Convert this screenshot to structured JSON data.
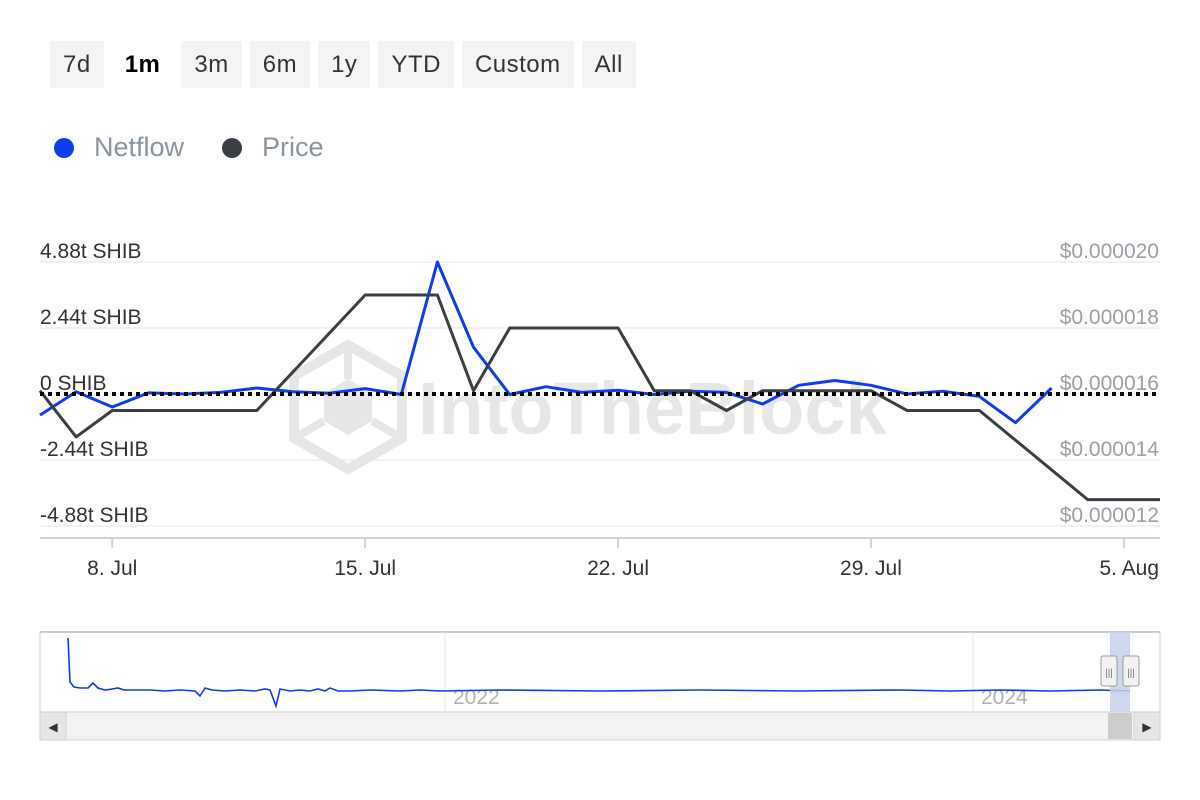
{
  "range_buttons": [
    {
      "label": "7d",
      "active": false
    },
    {
      "label": "1m",
      "active": true
    },
    {
      "label": "3m",
      "active": false
    },
    {
      "label": "6m",
      "active": false
    },
    {
      "label": "1y",
      "active": false
    },
    {
      "label": "YTD",
      "active": false
    },
    {
      "label": "Custom",
      "active": false
    },
    {
      "label": "All",
      "active": false
    }
  ],
  "legend": [
    {
      "label": "Netflow",
      "color": "#0d3ded"
    },
    {
      "label": "Price",
      "color": "#3a3f45"
    }
  ],
  "watermark": "IntoTheBlock",
  "chart_data": {
    "type": "line",
    "title": "",
    "xlabel": "",
    "x_start": "2024-07-06",
    "x_end": "2024-08-06",
    "x_ticks": [
      {
        "date": "2024-07-08",
        "label": "8. Jul"
      },
      {
        "date": "2024-07-15",
        "label": "15. Jul"
      },
      {
        "date": "2024-07-22",
        "label": "22. Jul"
      },
      {
        "date": "2024-07-29",
        "label": "29. Jul"
      },
      {
        "date": "2024-08-05",
        "label": "5. Aug"
      }
    ],
    "left_axis": {
      "unit": "t SHIB",
      "range": [
        -4.88,
        4.88
      ],
      "ticks": [
        {
          "value": 4.88,
          "label": "4.88t SHIB"
        },
        {
          "value": 2.44,
          "label": "2.44t SHIB"
        },
        {
          "value": 0,
          "label": "0 SHIB"
        },
        {
          "value": -2.44,
          "label": "-2.44t SHIB"
        },
        {
          "value": -4.88,
          "label": "-4.88t SHIB"
        }
      ]
    },
    "right_axis": {
      "unit": "$",
      "range": [
        1.2e-05,
        2e-05
      ],
      "ticks": [
        {
          "value": 2e-05,
          "label": "$0.000020"
        },
        {
          "value": 1.8e-05,
          "label": "$0.000018"
        },
        {
          "value": 1.6e-05,
          "label": "$0.000016"
        },
        {
          "value": 1.4e-05,
          "label": "$0.000014"
        },
        {
          "value": 1.2e-05,
          "label": "$0.000012"
        }
      ]
    },
    "zero_line": "dotted",
    "series": [
      {
        "name": "Netflow",
        "axis": "left",
        "color": "#0d3ded",
        "points": [
          [
            "2024-07-06",
            -0.78
          ],
          [
            "2024-07-07",
            0.08
          ],
          [
            "2024-07-08",
            -0.48
          ],
          [
            "2024-07-09",
            0.04
          ],
          [
            "2024-07-10",
            0.0
          ],
          [
            "2024-07-11",
            0.06
          ],
          [
            "2024-07-12",
            0.22
          ],
          [
            "2024-07-13",
            0.08
          ],
          [
            "2024-07-14",
            0.03
          ],
          [
            "2024-07-15",
            0.2
          ],
          [
            "2024-07-16",
            -0.02
          ],
          [
            "2024-07-17",
            4.88
          ],
          [
            "2024-07-18",
            1.73
          ],
          [
            "2024-07-19",
            -0.02
          ],
          [
            "2024-07-20",
            0.27
          ],
          [
            "2024-07-21",
            0.06
          ],
          [
            "2024-07-22",
            0.14
          ],
          [
            "2024-07-23",
            -0.02
          ],
          [
            "2024-07-24",
            0.1
          ],
          [
            "2024-07-25",
            0.06
          ],
          [
            "2024-07-26",
            -0.37
          ],
          [
            "2024-07-27",
            0.32
          ],
          [
            "2024-07-28",
            0.5
          ],
          [
            "2024-07-29",
            0.32
          ],
          [
            "2024-07-30",
            0.0
          ],
          [
            "2024-07-31",
            0.1
          ],
          [
            "2024-08-01",
            -0.09
          ],
          [
            "2024-08-02",
            -1.06
          ],
          [
            "2024-08-03",
            0.22
          ]
        ]
      },
      {
        "name": "Price",
        "axis": "right",
        "color": "#3a3f45",
        "points": [
          [
            "2024-07-06",
            1.61e-05
          ],
          [
            "2024-07-07",
            1.47e-05
          ],
          [
            "2024-07-08",
            1.55e-05
          ],
          [
            "2024-07-10",
            1.55e-05
          ],
          [
            "2024-07-12",
            1.55e-05
          ],
          [
            "2024-07-15",
            1.9e-05
          ],
          [
            "2024-07-17",
            1.9e-05
          ],
          [
            "2024-07-18",
            1.61e-05
          ],
          [
            "2024-07-19",
            1.8e-05
          ],
          [
            "2024-07-22",
            1.8e-05
          ],
          [
            "2024-07-23",
            1.61e-05
          ],
          [
            "2024-07-24",
            1.61e-05
          ],
          [
            "2024-07-25",
            1.55e-05
          ],
          [
            "2024-07-26",
            1.61e-05
          ],
          [
            "2024-07-29",
            1.61e-05
          ],
          [
            "2024-07-30",
            1.55e-05
          ],
          [
            "2024-08-01",
            1.55e-05
          ],
          [
            "2024-08-04",
            1.28e-05
          ],
          [
            "2024-08-06",
            1.28e-05
          ]
        ]
      }
    ]
  },
  "navigator": {
    "year_labels": [
      "2022",
      "2024"
    ],
    "left_arrow": "◀",
    "right_arrow": "▶",
    "handle_glyph": "|||"
  }
}
